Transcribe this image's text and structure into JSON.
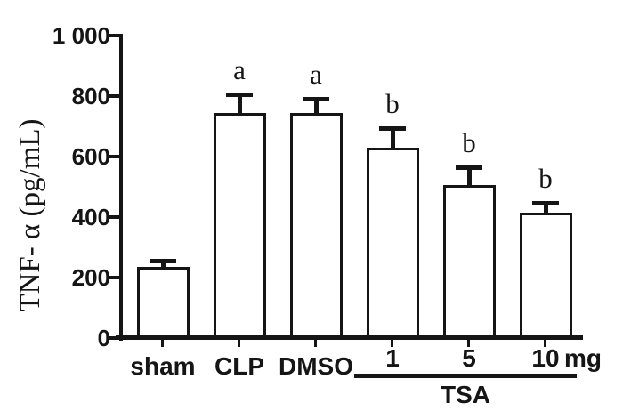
{
  "figure": {
    "background": "#ffffff",
    "ink_color": "#151515",
    "bar_fill": "#ffffff"
  },
  "chart_data": {
    "type": "bar",
    "title": "",
    "ylabel": "TNF- α (pg/mL)",
    "xlabel": "",
    "ylim": [
      0,
      1000
    ],
    "grid": false,
    "legend": false,
    "yticks": [
      {
        "value": 0,
        "label": "0"
      },
      {
        "value": 200,
        "label": "200"
      },
      {
        "value": 400,
        "label": "400"
      },
      {
        "value": 600,
        "label": "600"
      },
      {
        "value": 800,
        "label": "800"
      },
      {
        "value": 1000,
        "label": "1 000"
      }
    ],
    "bars": [
      {
        "category": "sham",
        "value": 235,
        "error_upper": 20,
        "sig_letter": ""
      },
      {
        "category": "CLP",
        "value": 745,
        "error_upper": 60,
        "sig_letter": "a"
      },
      {
        "category": "DMSO",
        "value": 745,
        "error_upper": 45,
        "sig_letter": "a"
      },
      {
        "category": "1",
        "value": 630,
        "error_upper": 65,
        "sig_letter": "b"
      },
      {
        "category": "5",
        "value": 505,
        "error_upper": 60,
        "sig_letter": "b"
      },
      {
        "category": "10",
        "value": 415,
        "error_upper": 33,
        "sig_letter": "b"
      }
    ],
    "unit_suffix": "mg",
    "group": {
      "label": "TSA",
      "members": [
        "1",
        "5",
        "10"
      ]
    },
    "bar_fill": "#ffffff",
    "bar_border": "#151515"
  }
}
